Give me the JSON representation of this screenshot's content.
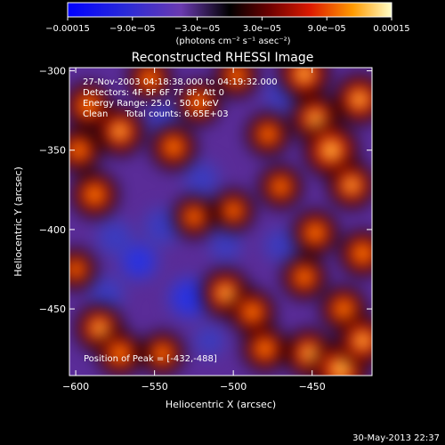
{
  "chart_data": {
    "type": "heatmap",
    "title": "Reconstructed RHESSI Image",
    "xlabel": "Heliocentric X (arcsec)",
    "ylabel": "Heliocentric Y (arcsec)",
    "xlim": [
      -604,
      -412
    ],
    "ylim": [
      -492,
      -298
    ],
    "x_ticks": [
      -600,
      -550,
      -500,
      -450
    ],
    "x_tick_labels": [
      "−600",
      "−550",
      "−500",
      "−450"
    ],
    "y_ticks": [
      -300,
      -350,
      -400,
      -450
    ],
    "y_tick_labels": [
      "−300",
      "−350",
      "−400",
      "−450"
    ],
    "colorbar": {
      "min": -0.00015,
      "max": 0.00015,
      "tick_labels": [
        "−0.00015",
        "−9.0e−05",
        "−3.0e−05",
        "3.0e−05",
        "9.0e−05",
        "0.00015"
      ],
      "unit_label": "(photons cm⁻² s⁻¹ asec⁻²)"
    },
    "annotations": [
      "27-Nov-2003 04:18:38.000 to 04:19:32.000",
      "Detectors: 4F 5F 6F 7F 8F, Att 0",
      "Energy Range: 25.0 - 50.0 keV",
      "Clean      Total counts: 6.65E+03"
    ],
    "peak_label": "Position of Peak = [-432,-488]",
    "hot_spots": [
      {
        "x": -592,
        "y": -322,
        "v": 0.6
      },
      {
        "x": -572,
        "y": -338,
        "v": 0.7
      },
      {
        "x": -553,
        "y": -305,
        "v": 0.5
      },
      {
        "x": -588,
        "y": -378,
        "v": 0.6
      },
      {
        "x": -598,
        "y": -350,
        "v": 0.5
      },
      {
        "x": -538,
        "y": -348,
        "v": 0.55
      },
      {
        "x": -522,
        "y": -320,
        "v": 0.5
      },
      {
        "x": -498,
        "y": -303,
        "v": 0.45
      },
      {
        "x": -478,
        "y": -340,
        "v": 0.45
      },
      {
        "x": -455,
        "y": -302,
        "v": 0.8
      },
      {
        "x": -448,
        "y": -330,
        "v": 0.7
      },
      {
        "x": -438,
        "y": -350,
        "v": 0.95
      },
      {
        "x": -420,
        "y": -318,
        "v": 0.75
      },
      {
        "x": -425,
        "y": -372,
        "v": 0.65
      },
      {
        "x": -470,
        "y": -373,
        "v": 0.45
      },
      {
        "x": -500,
        "y": -388,
        "v": 0.4
      },
      {
        "x": -525,
        "y": -392,
        "v": 0.4
      },
      {
        "x": -448,
        "y": -402,
        "v": 0.55
      },
      {
        "x": -418,
        "y": -415,
        "v": 0.6
      },
      {
        "x": -455,
        "y": -430,
        "v": 0.5
      },
      {
        "x": -505,
        "y": -440,
        "v": 0.7
      },
      {
        "x": -488,
        "y": -452,
        "v": 0.55
      },
      {
        "x": -430,
        "y": -450,
        "v": 0.55
      },
      {
        "x": -585,
        "y": -462,
        "v": 0.65
      },
      {
        "x": -572,
        "y": -478,
        "v": 0.55
      },
      {
        "x": -545,
        "y": -478,
        "v": 0.45
      },
      {
        "x": -480,
        "y": -475,
        "v": 0.55
      },
      {
        "x": -452,
        "y": -478,
        "v": 0.7
      },
      {
        "x": -432,
        "y": -488,
        "v": 1.0
      },
      {
        "x": -418,
        "y": -470,
        "v": 0.75
      },
      {
        "x": -600,
        "y": -425,
        "v": 0.35
      }
    ],
    "cold_spots": [
      {
        "x": -528,
        "y": -443,
        "v": 0.7
      },
      {
        "x": -560,
        "y": -420,
        "v": 0.55
      },
      {
        "x": -545,
        "y": -398,
        "v": 0.5
      },
      {
        "x": -575,
        "y": -405,
        "v": 0.45
      },
      {
        "x": -580,
        "y": -440,
        "v": 0.35
      },
      {
        "x": -520,
        "y": -368,
        "v": 0.4
      },
      {
        "x": -505,
        "y": -410,
        "v": 0.3
      },
      {
        "x": -470,
        "y": -410,
        "v": 0.35
      },
      {
        "x": -470,
        "y": -315,
        "v": 0.3
      },
      {
        "x": -545,
        "y": -330,
        "v": 0.25
      },
      {
        "x": -515,
        "y": -470,
        "v": 0.25
      }
    ]
  },
  "footer": {
    "timestamp": "30-May-2013 22:37"
  }
}
